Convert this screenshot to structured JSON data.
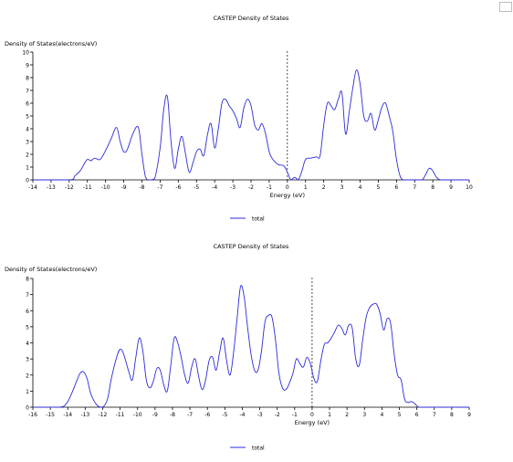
{
  "chart_data": [
    {
      "type": "line",
      "title": "CASTEP Density of States",
      "ylabel": "Density of States(electrons/eV)",
      "xlabel": "Energy (eV)",
      "xlim": [
        -14,
        10
      ],
      "ylim": [
        0,
        10
      ],
      "xticks": [
        "-14",
        "-13",
        "-12",
        "-11",
        "-10",
        "-9",
        "-8",
        "-7",
        "-6",
        "-5",
        "-4",
        "-3",
        "-2",
        "-1",
        "0",
        "1",
        "2",
        "3",
        "4",
        "5",
        "6",
        "7",
        "8",
        "9",
        "10"
      ],
      "yticks": [
        "0",
        "1",
        "2",
        "3",
        "4",
        "5",
        "6",
        "7",
        "8",
        "9",
        "10"
      ],
      "fermi_level": 0,
      "line_color": "#2b2bd9",
      "legend": "bottom-center",
      "series": [
        {
          "name": "total",
          "x": [
            -14,
            -12,
            -11.7,
            -11.4,
            -11.2,
            -11,
            -10.8,
            -10.6,
            -10.3,
            -10,
            -9.7,
            -9.4,
            -9.2,
            -9,
            -8.8,
            -8.5,
            -8.2,
            -8,
            -7.8,
            -7.6,
            -7.3,
            -7,
            -6.8,
            -6.6,
            -6.4,
            -6.2,
            -6,
            -5.8,
            -5.6,
            -5.4,
            -5.2,
            -5,
            -4.8,
            -4.6,
            -4.4,
            -4.2,
            -4,
            -3.8,
            -3.6,
            -3.4,
            -3.2,
            -3,
            -2.8,
            -2.6,
            -2.4,
            -2.2,
            -2,
            -1.8,
            -1.6,
            -1.4,
            -1.2,
            -1,
            -0.8,
            -0.5,
            -0.2,
            0,
            0.2,
            0.4,
            0.6,
            0.8,
            1,
            1.3,
            1.6,
            1.8,
            2,
            2.2,
            2.4,
            2.6,
            2.8,
            3,
            3.2,
            3.4,
            3.6,
            3.8,
            4,
            4.2,
            4.4,
            4.6,
            4.8,
            5,
            5.2,
            5.4,
            5.6,
            5.8,
            6,
            6.2,
            6.4,
            6.6,
            7,
            7.4,
            7.6,
            7.8,
            8,
            8.2,
            8.4,
            8.6,
            9,
            10
          ],
          "y": [
            0,
            0,
            0.3,
            0.7,
            1.2,
            1.6,
            1.5,
            1.7,
            1.6,
            2.3,
            3.2,
            4.1,
            3,
            2.2,
            2.4,
            3.6,
            4.1,
            2,
            0.2,
            0,
            0.1,
            2.5,
            5.5,
            6.5,
            3,
            0.9,
            2.4,
            3.4,
            2,
            0.6,
            1.3,
            2.2,
            2.4,
            1.9,
            3.5,
            4.4,
            2.5,
            4,
            6,
            6.3,
            5.8,
            5.4,
            4.8,
            4.1,
            5.6,
            6.3,
            5.8,
            4.3,
            3.9,
            4.4,
            3.6,
            2.2,
            1.6,
            1.2,
            1.1,
            0.6,
            0,
            0.2,
            0,
            0.7,
            1.6,
            1.7,
            1.8,
            1.9,
            4.3,
            6,
            5.8,
            5.5,
            6.3,
            6.8,
            3.6,
            5.3,
            7.2,
            8.6,
            7.5,
            5,
            4.6,
            5.2,
            3.9,
            4.7,
            5.7,
            6,
            5,
            3.8,
            1.6,
            0.3,
            0,
            0,
            0,
            0,
            0.4,
            0.9,
            0.7,
            0.2,
            0,
            0,
            0,
            0
          ]
        }
      ]
    },
    {
      "type": "line",
      "title": "CASTEP Density of States",
      "ylabel": "Density of States(electrons/eV)",
      "xlabel": "Energy (eV)",
      "xlim": [
        -16,
        9
      ],
      "ylim": [
        0,
        8
      ],
      "xticks": [
        "-16",
        "-15",
        "-14",
        "-13",
        "-12",
        "-11",
        "-10",
        "-9",
        "-8",
        "-7",
        "-6",
        "-5",
        "-4",
        "-3",
        "-2",
        "-1",
        "0",
        "1",
        "2",
        "3",
        "4",
        "5",
        "6",
        "7",
        "8",
        "9"
      ],
      "yticks": [
        "0",
        "1",
        "2",
        "3",
        "4",
        "5",
        "6",
        "7",
        "8"
      ],
      "fermi_level": 0,
      "line_color": "#2b2bd9",
      "legend": "bottom-center",
      "series": [
        {
          "name": "total",
          "x": [
            -16,
            -14.5,
            -14.1,
            -13.8,
            -13.5,
            -13.3,
            -13.1,
            -12.9,
            -12.7,
            -12.5,
            -12.3,
            -12.1,
            -11.9,
            -11.7,
            -11.5,
            -11.2,
            -11,
            -10.8,
            -10.5,
            -10.3,
            -10.1,
            -9.9,
            -9.7,
            -9.5,
            -9.3,
            -9.1,
            -8.9,
            -8.7,
            -8.5,
            -8.3,
            -8.1,
            -7.9,
            -7.7,
            -7.5,
            -7.3,
            -7.1,
            -6.9,
            -6.7,
            -6.5,
            -6.3,
            -6.1,
            -5.9,
            -5.7,
            -5.5,
            -5.3,
            -5.1,
            -4.9,
            -4.7,
            -4.5,
            -4.3,
            -4.1,
            -3.9,
            -3.7,
            -3.5,
            -3.3,
            -3.1,
            -2.9,
            -2.7,
            -2.5,
            -2.3,
            -2.1,
            -1.9,
            -1.7,
            -1.5,
            -1.3,
            -1.1,
            -0.9,
            -0.7,
            -0.5,
            -0.3,
            -0.1,
            0.1,
            0.3,
            0.5,
            0.7,
            0.9,
            1.1,
            1.3,
            1.5,
            1.7,
            1.9,
            2.1,
            2.3,
            2.5,
            2.7,
            2.9,
            3.1,
            3.3,
            3.5,
            3.7,
            3.9,
            4.1,
            4.3,
            4.5,
            4.7,
            4.9,
            5.1,
            5.3,
            5.5,
            5.7,
            5.9,
            6.1,
            6.3,
            6.5,
            7,
            9
          ],
          "y": [
            0,
            0,
            0.2,
            0.8,
            1.6,
            2.1,
            2.2,
            1.8,
            0.9,
            0.4,
            0.1,
            0,
            0.1,
            0.6,
            1.8,
            3.1,
            3.6,
            3.3,
            2.2,
            1.7,
            3.1,
            4.3,
            3.5,
            1.7,
            1.2,
            1.6,
            2.4,
            2.3,
            1.4,
            1,
            2.6,
            4.3,
            4,
            3.1,
            2,
            1.5,
            2.5,
            3,
            1.9,
            1.1,
            1.7,
            2.9,
            3.1,
            2.3,
            3.4,
            4.3,
            2.9,
            2,
            3.4,
            5.5,
            7.5,
            6.9,
            5,
            3.3,
            2.3,
            2.3,
            3.5,
            5.3,
            5.7,
            5.6,
            4.2,
            2.1,
            1.2,
            1.1,
            1.5,
            2.1,
            3,
            2.7,
            2.5,
            3.1,
            2.7,
            1.8,
            1.6,
            2.9,
            3.9,
            4,
            4.3,
            4.7,
            5.1,
            4.9,
            4.5,
            5.1,
            4.9,
            3,
            2.6,
            4.2,
            5.6,
            6.2,
            6.4,
            6.4,
            5.8,
            4.8,
            5.5,
            5.2,
            3.3,
            2,
            1.7,
            0.5,
            0.3,
            0.35,
            0.2,
            0,
            0,
            0,
            0,
            0
          ]
        }
      ]
    }
  ]
}
